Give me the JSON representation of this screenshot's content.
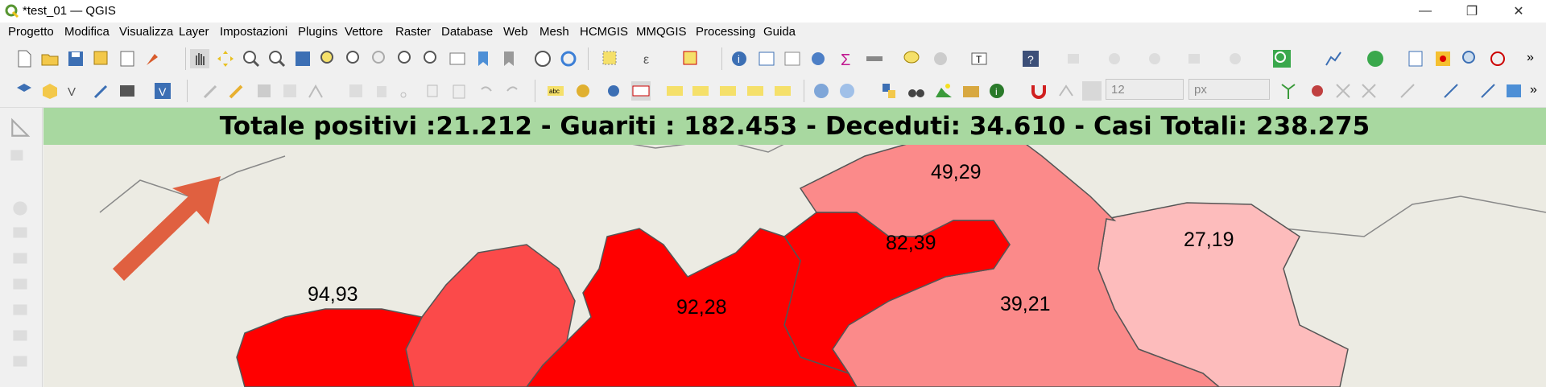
{
  "window": {
    "title": "*test_01 — QGIS",
    "logo_icon": "qgis-logo-icon",
    "controls": [
      "minimize-icon",
      "restore-icon",
      "close-icon"
    ]
  },
  "menubar": {
    "items": [
      "Progetto",
      "Modifica",
      "Visualizza",
      "Layer",
      "Impostazioni",
      "Plugins",
      "Vettore",
      "Raster",
      "Database",
      "Web",
      "Mesh",
      "HCMGIS",
      "MMQGIS",
      "Processing",
      "Guida"
    ]
  },
  "toolbar2": {
    "font_size_value": "12",
    "unit_value": "px"
  },
  "map": {
    "banner": "Totale positivi :21.212 - Guariti : 182.453 - Deceduti: 34.610 - Casi Totali: 238.275",
    "labels": {
      "r1": "49,29",
      "r2": "82,39",
      "r3": "27,19",
      "r4": "94,93",
      "r5": "92,28",
      "r6": "39,21"
    },
    "colors": {
      "banner": "#a8d8a0",
      "dark_red": "#ff0000",
      "red": "#fb4a4a",
      "salmon": "#fb8a8a",
      "light": "#fdbcbc",
      "arrow": "#e06040"
    }
  }
}
